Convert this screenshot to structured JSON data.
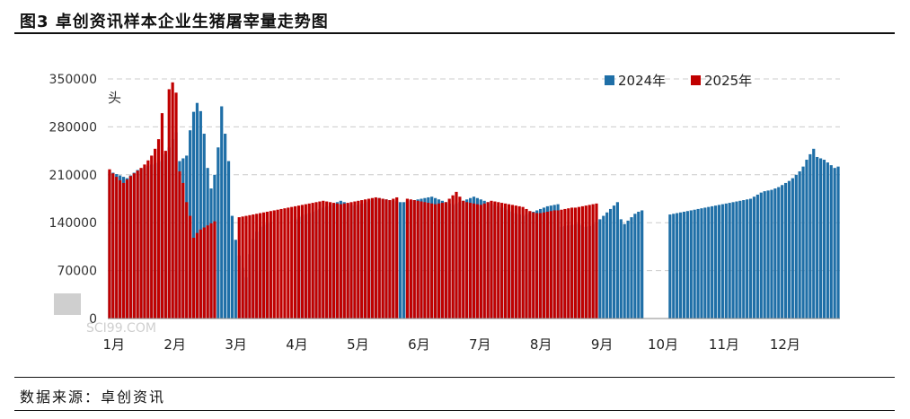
{
  "page": {
    "title": "图3 卓创资讯样本企业生猪屠宰量走势图",
    "source": "数据来源：卓创资讯",
    "watermark": "SCI99.COM"
  },
  "chart_data": {
    "type": "bar",
    "unit_label": "头",
    "ylim": [
      0,
      350000
    ],
    "yticks": [
      "350000",
      "280000",
      "210000",
      "140000",
      "70000",
      "0"
    ],
    "ytick_values": [
      350000,
      280000,
      210000,
      140000,
      70000,
      0
    ],
    "xticks": [
      "1月",
      "2月",
      "3月",
      "4月",
      "5月",
      "6月",
      "7月",
      "8月",
      "9月",
      "10月",
      "11月",
      "12月"
    ],
    "grid": true,
    "legend_position": "top-right",
    "colors": {
      "2024年": "#1f6fa7",
      "2025年": "#c00000"
    },
    "series": [
      {
        "name": "2024年",
        "values": [
          215000,
          213000,
          211000,
          209000,
          207000,
          205000,
          209000,
          213000,
          217000,
          219000,
          221000,
          223000,
          225000,
          227000,
          229000,
          231000,
          240000,
          250000,
          262000,
          272000,
          230000,
          234000,
          238000,
          275000,
          302000,
          315000,
          303000,
          270000,
          220000,
          190000,
          210000,
          250000,
          310000,
          270000,
          230000,
          150000,
          115000,
          92000,
          74000,
          60000,
          94000,
          116000,
          127000,
          134000,
          137000,
          139000,
          141000,
          null,
          null,
          null,
          null,
          null,
          null,
          145000,
          148000,
          150000,
          152000,
          154000,
          156000,
          158000,
          160000,
          162000,
          164000,
          166000,
          168000,
          170000,
          172000,
          170000,
          168000,
          166000,
          165000,
          166000,
          168000,
          170000,
          172000,
          174000,
          175000,
          176000,
          175000,
          174000,
          173000,
          172000,
          171000,
          170000,
          170000,
          171000,
          172000,
          173000,
          174000,
          175000,
          176000,
          177000,
          178000,
          176000,
          174000,
          172000,
          170000,
          168000,
          166000,
          168000,
          170000,
          172000,
          174000,
          176000,
          178000,
          176000,
          174000,
          172000,
          170000,
          168000,
          166000,
          164000,
          162000,
          160000,
          158000,
          156000,
          154000,
          152000,
          150000,
          152000,
          154000,
          156000,
          158000,
          160000,
          162000,
          164000,
          165000,
          166000,
          167000,
          134000,
          135000,
          136000,
          137000,
          138000,
          139000,
          136000,
          134000,
          135000,
          138000,
          140000,
          145000,
          150000,
          155000,
          160000,
          165000,
          170000,
          145000,
          138000,
          143000,
          148000,
          153000,
          156000,
          158000,
          null,
          null,
          null,
          null,
          null,
          null,
          null,
          152000,
          153000,
          154000,
          155000,
          156000,
          157000,
          158000,
          159000,
          160000,
          161000,
          162000,
          163000,
          164000,
          165000,
          166000,
          167000,
          168000,
          169000,
          170000,
          171000,
          172000,
          173000,
          174000,
          175000,
          178000,
          181000,
          184000,
          186000,
          187000,
          188000,
          190000,
          192000,
          195000,
          198000,
          201000,
          205000,
          210000,
          215000,
          222000,
          232000,
          240000,
          248000,
          236000,
          234000,
          232000,
          228000,
          224000,
          220000,
          222000
        ]
      },
      {
        "name": "2025年",
        "values": [
          218000,
          212000,
          207000,
          202000,
          198000,
          203000,
          208000,
          212000,
          216000,
          220000,
          225000,
          231000,
          238000,
          248000,
          262000,
          300000,
          245000,
          335000,
          345000,
          330000,
          215000,
          198000,
          170000,
          150000,
          118000,
          125000,
          130000,
          133000,
          136000,
          139000,
          142000,
          null,
          null,
          null,
          null,
          null,
          null,
          148000,
          149000,
          150000,
          151000,
          152000,
          153000,
          154000,
          155000,
          156000,
          157000,
          158000,
          159000,
          160000,
          161000,
          162000,
          163000,
          164000,
          165000,
          166000,
          167000,
          168000,
          169000,
          170000,
          171000,
          172000,
          171000,
          170000,
          169000,
          168000,
          167000,
          168000,
          169000,
          170000,
          171000,
          172000,
          173000,
          174000,
          175000,
          176000,
          177000,
          176000,
          175000,
          174000,
          173000,
          175000,
          177000,
          null,
          null,
          175000,
          174000,
          173000,
          172000,
          171000,
          170000,
          169000,
          168000,
          167000,
          168000,
          169000,
          170000,
          175000,
          180000,
          185000,
          178000,
          172000,
          170000,
          169000,
          168000,
          167000,
          166000,
          168000,
          170000,
          172000,
          171000,
          170000,
          169000,
          168000,
          167000,
          166000,
          165000,
          164000,
          163000,
          160000,
          157000,
          155000,
          154000,
          154000,
          155000,
          156000,
          157000,
          158000,
          158000,
          159000,
          160000,
          161000,
          162000,
          162000,
          163000,
          164000,
          165000,
          166000,
          167000,
          168000
        ]
      }
    ]
  }
}
